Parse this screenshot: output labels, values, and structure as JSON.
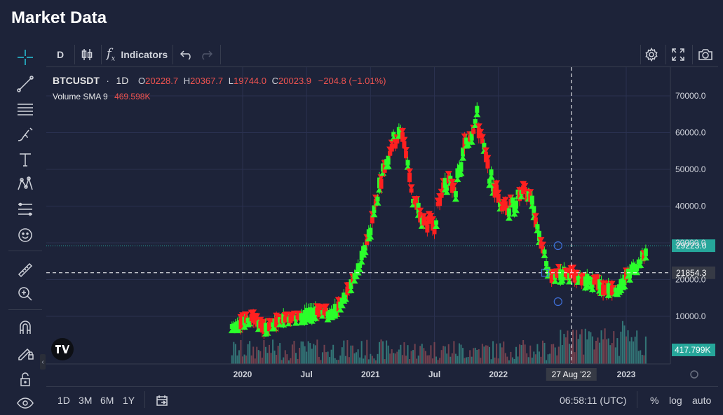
{
  "page_title": "Market Data",
  "top_bar": {
    "interval": "D",
    "indicators_label": "Indicators"
  },
  "legend": {
    "symbol": "BTCUSDT",
    "interval": "1D",
    "o_label": "O",
    "o_value": "20228.7",
    "h_label": "H",
    "h_value": "20367.7",
    "l_label": "L",
    "l_value": "19744.0",
    "c_label": "C",
    "c_value": "20023.9",
    "change": "−204.8 (−1.01%)",
    "volume_label": "Volume SMA 9",
    "volume_value": "469.598K"
  },
  "price_axis": {
    "ticks": [
      "70000.0",
      "60000.0",
      "50000.0",
      "40000.0",
      "30000.0",
      "20000.0",
      "10000.0"
    ],
    "last_price": "29223.0",
    "crosshair_price": "21854.3",
    "volume_label": "417.799K"
  },
  "time_axis": {
    "ticks": [
      "2020",
      "Jul",
      "2021",
      "Jul",
      "2022",
      "2023"
    ],
    "crosshair_date": "27 Aug '22"
  },
  "bottom_bar": {
    "ranges": [
      "1D",
      "3M",
      "6M",
      "1Y"
    ],
    "clock": "06:58:11 (UTC)",
    "percent": "%",
    "log": "log",
    "auto": "auto"
  },
  "colors": {
    "up": "#2bff2b",
    "down": "#ff2020",
    "background": "#1d2339",
    "grid": "#2a3150",
    "last_price_badge": "#26a69a"
  },
  "chart_data": {
    "type": "line",
    "title": "",
    "xlabel": "",
    "ylabel": "",
    "ylim": [
      0,
      75000
    ],
    "x": [
      "2019-12",
      "2020-01",
      "2020-02",
      "2020-03",
      "2020-04",
      "2020-05",
      "2020-06",
      "2020-07",
      "2020-08",
      "2020-09",
      "2020-10",
      "2020-11",
      "2020-12",
      "2021-01",
      "2021-02",
      "2021-03",
      "2021-04",
      "2021-05",
      "2021-06",
      "2021-07",
      "2021-08",
      "2021-09",
      "2021-10",
      "2021-11",
      "2021-12",
      "2022-01",
      "2022-02",
      "2022-03",
      "2022-04",
      "2022-05",
      "2022-06",
      "2022-07",
      "2022-08",
      "2022-09",
      "2022-10",
      "2022-11",
      "2022-12",
      "2023-01",
      "2023-02",
      "2023-03"
    ],
    "series": [
      {
        "values": [
          7200,
          8500,
          9500,
          6500,
          8000,
          9500,
          9300,
          10500,
          11500,
          10700,
          12500,
          17500,
          24000,
          34000,
          48000,
          57000,
          60000,
          42000,
          35000,
          35000,
          47000,
          45000,
          58000,
          64000,
          50000,
          42000,
          39000,
          43000,
          43000,
          30000,
          20000,
          22000,
          21500,
          19500,
          19800,
          17500,
          16800,
          21500,
          24000,
          28000
        ]
      }
    ]
  }
}
